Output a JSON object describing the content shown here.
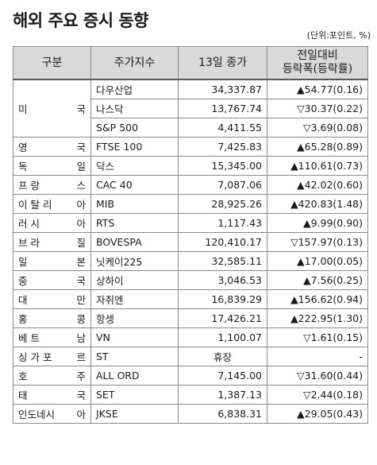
{
  "title": "해외 주요 증시 동향",
  "unit": "(단위:포인트, %)",
  "headers": {
    "region": "구분",
    "index": "주가지수",
    "close": "13일 종가",
    "change_line1": "전일대비",
    "change_line2": "등락폭(등락률)"
  },
  "us": {
    "country_left": "미",
    "country_right": "국",
    "rows": [
      {
        "index": "다우산업",
        "close": "34,337.87",
        "change": "▲54.77(0.16)"
      },
      {
        "index": "나스닥",
        "close": "13,767.74",
        "change": "▽30.37(0.22)"
      },
      {
        "index": "S&P 500",
        "close": "4,411.55",
        "change": "▽3.69(0.08)"
      }
    ]
  },
  "rows": [
    {
      "c1": "영",
      "c2": "국",
      "index": "FTSE 100",
      "close": "7,425.83",
      "change": "▲65.28(0.89)"
    },
    {
      "c1": "독",
      "c2": "일",
      "index": "닥스",
      "close": "15,345.00",
      "change": "▲110.61(0.73)"
    },
    {
      "c1": "프 랑",
      "c2": "스",
      "index": "CAC 40",
      "close": "7,087.06",
      "change": "▲42.02(0.60)"
    },
    {
      "c1": "이 탈 리",
      "c2": "아",
      "index": "MIB",
      "close": "28,925.26",
      "change": "▲420.83(1.48)"
    },
    {
      "c1": "러 시",
      "c2": "아",
      "index": "RTS",
      "close": "1,117.43",
      "change": "▲9.99(0.90)"
    },
    {
      "c1": "브 라",
      "c2": "질",
      "index": "BOVESPA",
      "close": "120,410.17",
      "change": "▽157.97(0.13)"
    },
    {
      "c1": "일",
      "c2": "본",
      "index": "닛케이225",
      "close": "32,585.11",
      "change": "▲17.00(0.05)"
    },
    {
      "c1": "중",
      "c2": "국",
      "index": "상하이",
      "close": "3,046.53",
      "change": "▲7.56(0.25)"
    },
    {
      "c1": "대",
      "c2": "만",
      "index": "자취엔",
      "close": "16,839.29",
      "change": "▲156.62(0.94)"
    },
    {
      "c1": "홍",
      "c2": "콩",
      "index": "항셍",
      "close": "17,426.21",
      "change": "▲222.95(1.30)"
    },
    {
      "c1": "베 트",
      "c2": "남",
      "index": "VN",
      "close": "1,100.07",
      "change": "▽1.61(0.15)"
    },
    {
      "c1": "싱 가 포",
      "c2": "르",
      "index": "ST",
      "close": "휴장",
      "change": "-"
    },
    {
      "c1": "호",
      "c2": "주",
      "index": "ALL ORD",
      "close": "7,145.00",
      "change": "▽31.60(0.44)"
    },
    {
      "c1": "태",
      "c2": "국",
      "index": "SET",
      "close": "1,387.13",
      "change": "▽2.44(0.18)"
    },
    {
      "c1": "인도네시",
      "c2": "아",
      "index": "JKSE",
      "close": "6,838.31",
      "change": "▲29.05(0.43)"
    }
  ]
}
